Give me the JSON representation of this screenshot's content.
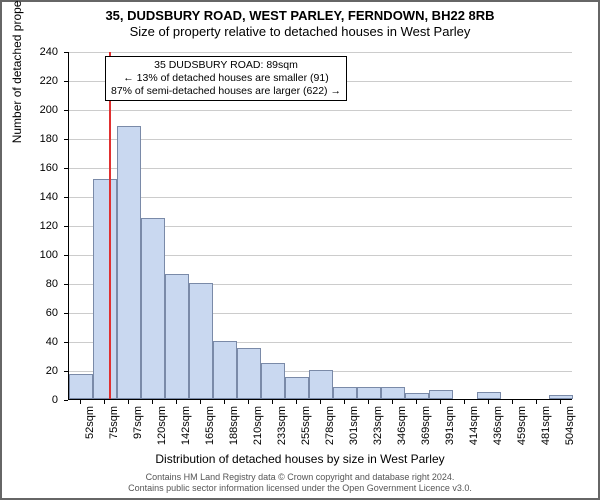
{
  "title": {
    "line1": "35, DUDSBURY ROAD, WEST PARLEY, FERNDOWN, BH22 8RB",
    "line2": "Size of property relative to detached houses in West Parley"
  },
  "yaxis": {
    "label": "Number of detached properties",
    "min": 0,
    "max": 240,
    "step": 20
  },
  "xaxis": {
    "label": "Distribution of detached houses by size in West Parley",
    "ticks": [
      "52sqm",
      "75sqm",
      "97sqm",
      "120sqm",
      "142sqm",
      "165sqm",
      "188sqm",
      "210sqm",
      "233sqm",
      "255sqm",
      "278sqm",
      "301sqm",
      "323sqm",
      "346sqm",
      "369sqm",
      "391sqm",
      "414sqm",
      "436sqm",
      "459sqm",
      "481sqm",
      "504sqm"
    ]
  },
  "chart": {
    "type": "histogram-with-marker",
    "bar_fill": "#c9d8f0",
    "bar_border": "#7a8aa8",
    "background": "#ffffff",
    "grid_color": "#cccccc",
    "values": [
      17,
      152,
      188,
      125,
      86,
      80,
      40,
      35,
      25,
      15,
      20,
      8,
      8,
      8,
      4,
      6,
      0,
      5,
      0,
      0,
      3
    ],
    "marker": {
      "x_index_fractional": 1.65,
      "color": "#e03030"
    }
  },
  "annotation": {
    "line1": "35 DUDSBURY ROAD: 89sqm",
    "line2": "← 13% of detached houses are smaller (91)",
    "line3": "87% of semi-detached houses are larger (622) →"
  },
  "footer": {
    "line1": "Contains HM Land Registry data © Crown copyright and database right 2024.",
    "line2": "Contains public sector information licensed under the Open Government Licence v3.0."
  }
}
